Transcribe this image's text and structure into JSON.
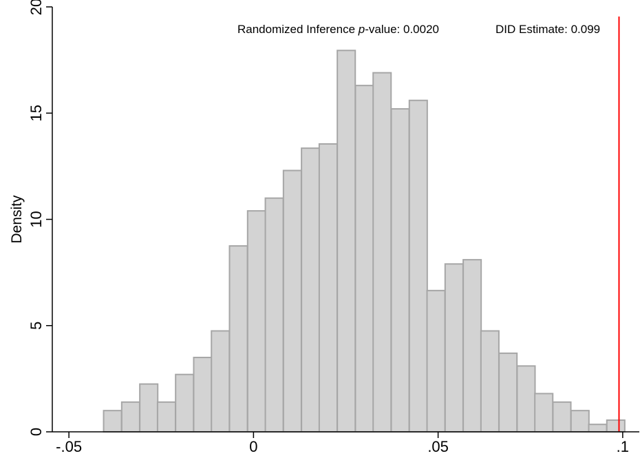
{
  "chart_data": {
    "type": "bar",
    "ylabel": "Density",
    "xlabel": "",
    "xlim": [
      -0.0545,
      0.1045
    ],
    "ylim": [
      0,
      20
    ],
    "x_ticks": [
      -0.05,
      0,
      0.05,
      0.1
    ],
    "x_tick_labels": [
      "-.05",
      "0",
      ".05",
      ".1"
    ],
    "y_ticks": [
      0,
      5,
      10,
      15,
      20
    ],
    "y_tick_labels": [
      "0",
      "5",
      "10",
      "15",
      "20"
    ],
    "bin_width": 0.00486,
    "bins": [
      {
        "x0": -0.0406,
        "y": 1.0
      },
      {
        "x0": -0.0357,
        "y": 1.4
      },
      {
        "x0": -0.0308,
        "y": 2.25
      },
      {
        "x0": -0.026,
        "y": 1.4
      },
      {
        "x0": -0.0211,
        "y": 2.7
      },
      {
        "x0": -0.0162,
        "y": 3.5
      },
      {
        "x0": -0.0114,
        "y": 4.75
      },
      {
        "x0": -0.0065,
        "y": 8.75
      },
      {
        "x0": -0.0016,
        "y": 10.4
      },
      {
        "x0": 0.0032,
        "y": 11.0
      },
      {
        "x0": 0.0081,
        "y": 12.3
      },
      {
        "x0": 0.013,
        "y": 13.35
      },
      {
        "x0": 0.0178,
        "y": 13.55
      },
      {
        "x0": 0.0227,
        "y": 17.95
      },
      {
        "x0": 0.0276,
        "y": 16.3
      },
      {
        "x0": 0.0324,
        "y": 16.9
      },
      {
        "x0": 0.0373,
        "y": 15.2
      },
      {
        "x0": 0.0422,
        "y": 15.6
      },
      {
        "x0": 0.047,
        "y": 6.65
      },
      {
        "x0": 0.0519,
        "y": 7.9
      },
      {
        "x0": 0.0568,
        "y": 8.1
      },
      {
        "x0": 0.0616,
        "y": 4.75
      },
      {
        "x0": 0.0665,
        "y": 3.7
      },
      {
        "x0": 0.0714,
        "y": 3.1
      },
      {
        "x0": 0.0762,
        "y": 1.8
      },
      {
        "x0": 0.0811,
        "y": 1.4
      },
      {
        "x0": 0.086,
        "y": 1.0
      },
      {
        "x0": 0.0908,
        "y": 0.35
      },
      {
        "x0": 0.0957,
        "y": 0.55
      }
    ],
    "reference_line": {
      "x": 0.099,
      "color": "#ff0000"
    },
    "annotation": {
      "prefix": "Randomized Inference ",
      "p_italic": "p",
      "suffix": "-value: 0.0020",
      "estimate": "DID Estimate: 0.099"
    },
    "grid": false,
    "legend": "none",
    "bar_fill": "#d3d3d3",
    "bar_stroke": "#a6a6a6"
  }
}
